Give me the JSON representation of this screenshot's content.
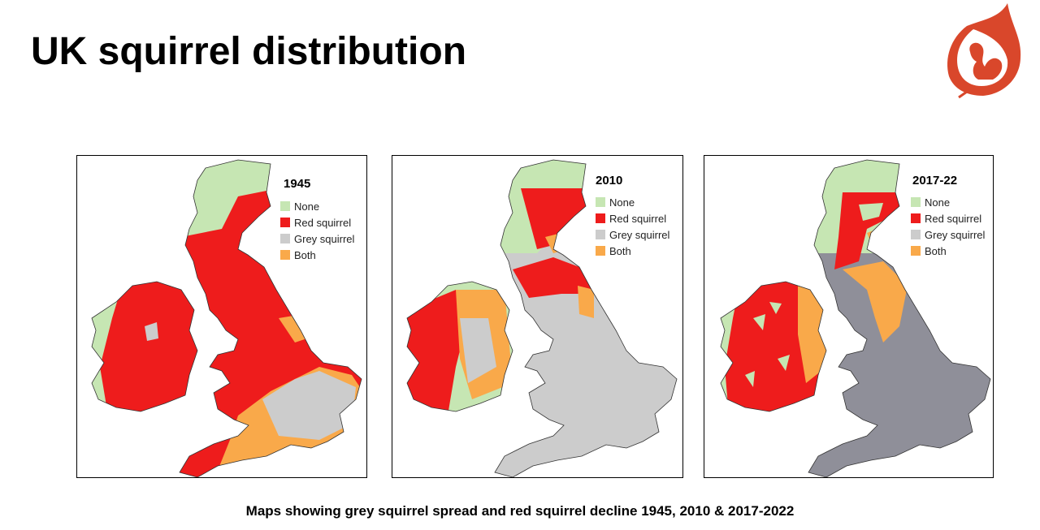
{
  "title": "UK squirrel distribution",
  "caption": "Maps showing grey squirrel spread and red squirrel decline 1945, 2010 & 2017-2022",
  "logo": {
    "icon": "red-squirrel-leaf-logo",
    "color": "#d9472b"
  },
  "legend": [
    {
      "label": "None",
      "color": "#c6e6b3"
    },
    {
      "label": "Red squirrel",
      "color": "#ee1c1c"
    },
    {
      "label": "Grey squirrel",
      "color": "#cccccc"
    },
    {
      "label": "Both",
      "color": "#f9a94a"
    }
  ],
  "maps": [
    {
      "year": "1945",
      "grey_color": "#cccccc"
    },
    {
      "year": "2010",
      "grey_color": "#cccccc"
    },
    {
      "year": "2017-22",
      "grey_color": "#8f8f99"
    }
  ]
}
